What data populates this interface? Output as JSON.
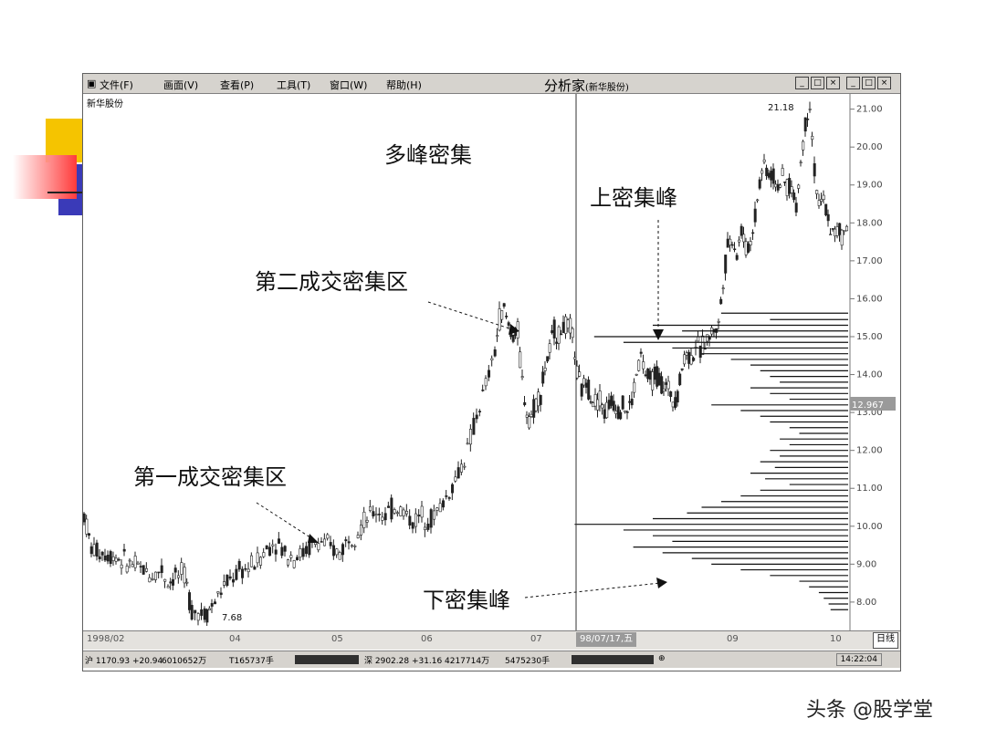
{
  "window": {
    "menu": [
      "文件(F)",
      "画面(V)",
      "查看(P)",
      "工具(T)",
      "窗口(W)",
      "帮助(H)"
    ],
    "title": "分析家",
    "title_sub": "(新华股份)",
    "stock_name": "新华股份",
    "buttons": {
      "minimize": "_",
      "restore": "□",
      "close": "×"
    }
  },
  "annotations": {
    "multi_peak": "多峰密集",
    "upper_peak": "上密集峰",
    "second_zone": "第二成交密集区",
    "first_zone": "第一成交密集区",
    "lower_peak": "下密集峰",
    "high_label": "21.18",
    "low_label": "7.68",
    "current_price": "12.967"
  },
  "time_axis": {
    "ticks": [
      "1998/02",
      "04",
      "05",
      "06",
      "07",
      "09",
      "10"
    ],
    "selected_date": "98/07/17,五",
    "period": "日线"
  },
  "status_bar": {
    "sh_index": "沪 1170.93 +20.94",
    "sh_amount": "6010652万",
    "sh_volume": "T165737手",
    "sz_index": "深 2902.28 +31.16",
    "sz_amount": "4217714万",
    "sz_volume": "5475230手",
    "time": "14:22:04"
  },
  "watermark": "头条 @股学堂",
  "chart_data": {
    "type": "candlestick",
    "y_axis": {
      "ticks": [
        "21.00",
        "20.00",
        "19.00",
        "18.00",
        "17.00",
        "16.00",
        "15.00",
        "14.00",
        "13.00",
        "12.00",
        "11.00",
        "10.00",
        "9.00",
        "8.00"
      ],
      "ylim": [
        7.3,
        21.4
      ]
    },
    "price_path": [
      [
        0,
        10.3
      ],
      [
        8,
        9.4
      ],
      [
        20,
        9.3
      ],
      [
        35,
        9.2
      ],
      [
        50,
        9.0
      ],
      [
        65,
        8.85
      ],
      [
        75,
        8.7
      ],
      [
        85,
        8.85
      ],
      [
        92,
        8.5
      ],
      [
        100,
        8.7
      ],
      [
        110,
        8.7
      ],
      [
        118,
        7.8
      ],
      [
        125,
        7.75
      ],
      [
        132,
        7.68
      ],
      [
        140,
        7.9
      ],
      [
        150,
        8.3
      ],
      [
        160,
        8.6
      ],
      [
        170,
        8.8
      ],
      [
        180,
        8.9
      ],
      [
        190,
        9.1
      ],
      [
        200,
        9.4
      ],
      [
        210,
        9.6
      ],
      [
        220,
        9.3
      ],
      [
        230,
        9.2
      ],
      [
        240,
        9.3
      ],
      [
        250,
        9.5
      ],
      [
        260,
        9.6
      ],
      [
        270,
        9.4
      ],
      [
        280,
        9.3
      ],
      [
        290,
        9.7
      ],
      [
        300,
        9.9
      ],
      [
        310,
        10.2
      ],
      [
        320,
        10.4
      ],
      [
        330,
        10.3
      ],
      [
        340,
        10.5
      ],
      [
        350,
        10.4
      ],
      [
        360,
        10.1
      ],
      [
        370,
        10.3
      ],
      [
        380,
        10.2
      ],
      [
        390,
        10.5
      ],
      [
        400,
        10.9
      ],
      [
        410,
        11.4
      ],
      [
        420,
        12.0
      ],
      [
        430,
        12.9
      ],
      [
        440,
        13.7
      ],
      [
        450,
        14.6
      ],
      [
        455,
        15.5
      ],
      [
        460,
        15.7
      ],
      [
        465,
        15.3
      ],
      [
        470,
        15.0
      ],
      [
        475,
        15.1
      ],
      [
        480,
        13.8
      ],
      [
        485,
        13.0
      ],
      [
        490,
        12.9
      ],
      [
        495,
        13.3
      ],
      [
        500,
        13.5
      ],
      [
        505,
        14.2
      ],
      [
        510,
        14.6
      ],
      [
        515,
        15.2
      ],
      [
        520,
        15.0
      ],
      [
        525,
        15.3
      ],
      [
        530,
        15.2
      ],
      [
        535,
        15.1
      ],
      [
        540,
        14.0
      ],
      [
        545,
        13.6
      ],
      [
        550,
        13.8
      ],
      [
        555,
        13.5
      ],
      [
        560,
        13.3
      ],
      [
        565,
        13.4
      ],
      [
        570,
        13.0
      ],
      [
        575,
        13.2
      ],
      [
        580,
        13.3
      ],
      [
        585,
        13.1
      ],
      [
        590,
        13.2
      ],
      [
        595,
        13.0
      ],
      [
        600,
        13.3
      ],
      [
        605,
        14.0
      ],
      [
        610,
        14.5
      ],
      [
        615,
        14.0
      ],
      [
        620,
        13.8
      ],
      [
        625,
        14.0
      ],
      [
        630,
        13.9
      ],
      [
        635,
        13.7
      ],
      [
        640,
        13.6
      ],
      [
        645,
        13.4
      ],
      [
        650,
        13.5
      ],
      [
        655,
        14.2
      ],
      [
        660,
        14.6
      ],
      [
        665,
        14.4
      ],
      [
        670,
        14.8
      ],
      [
        675,
        14.6
      ],
      [
        680,
        14.9
      ],
      [
        685,
        15.0
      ],
      [
        690,
        15.2
      ],
      [
        695,
        15.3
      ],
      [
        700,
        16.5
      ],
      [
        705,
        17.4
      ],
      [
        710,
        17.6
      ],
      [
        715,
        17.2
      ],
      [
        720,
        17.8
      ],
      [
        725,
        17.3
      ],
      [
        730,
        17.5
      ],
      [
        735,
        18.2
      ],
      [
        740,
        19.1
      ],
      [
        745,
        19.6
      ],
      [
        750,
        19.3
      ],
      [
        755,
        19.2
      ],
      [
        760,
        19.0
      ],
      [
        765,
        19.1
      ],
      [
        770,
        19.0
      ],
      [
        775,
        18.9
      ],
      [
        780,
        18.4
      ],
      [
        785,
        19.6
      ],
      [
        790,
        20.6
      ],
      [
        795,
        21.18
      ],
      [
        800,
        19.4
      ],
      [
        805,
        18.4
      ],
      [
        810,
        18.6
      ],
      [
        815,
        18.1
      ],
      [
        820,
        17.7
      ],
      [
        825,
        17.8
      ],
      [
        830,
        17.6
      ],
      [
        838,
        18.1
      ]
    ],
    "volume_profile": [
      {
        "price": 15.62,
        "length": 130
      },
      {
        "price": 15.45,
        "length": 80
      },
      {
        "price": 15.3,
        "length": 200
      },
      {
        "price": 15.15,
        "length": 170
      },
      {
        "price": 15.0,
        "length": 260
      },
      {
        "price": 14.85,
        "length": 230
      },
      {
        "price": 14.7,
        "length": 180
      },
      {
        "price": 14.55,
        "length": 150
      },
      {
        "price": 14.4,
        "length": 120
      },
      {
        "price": 14.25,
        "length": 100
      },
      {
        "price": 14.1,
        "length": 90
      },
      {
        "price": 13.95,
        "length": 80
      },
      {
        "price": 13.8,
        "length": 70
      },
      {
        "price": 13.65,
        "length": 100
      },
      {
        "price": 13.5,
        "length": 80
      },
      {
        "price": 13.35,
        "length": 60
      },
      {
        "price": 13.2,
        "length": 140
      },
      {
        "price": 13.05,
        "length": 110
      },
      {
        "price": 12.9,
        "length": 90
      },
      {
        "price": 12.75,
        "length": 80
      },
      {
        "price": 12.6,
        "length": 60
      },
      {
        "price": 12.45,
        "length": 50
      },
      {
        "price": 12.3,
        "length": 70
      },
      {
        "price": 12.15,
        "length": 60
      },
      {
        "price": 12.0,
        "length": 80
      },
      {
        "price": 11.85,
        "length": 70
      },
      {
        "price": 11.7,
        "length": 90
      },
      {
        "price": 11.55,
        "length": 75
      },
      {
        "price": 11.4,
        "length": 100
      },
      {
        "price": 11.25,
        "length": 85
      },
      {
        "price": 11.1,
        "length": 60
      },
      {
        "price": 10.95,
        "length": 90
      },
      {
        "price": 10.8,
        "length": 110
      },
      {
        "price": 10.65,
        "length": 130
      },
      {
        "price": 10.5,
        "length": 150
      },
      {
        "price": 10.35,
        "length": 165
      },
      {
        "price": 10.2,
        "length": 200
      },
      {
        "price": 10.05,
        "length": 280
      },
      {
        "price": 9.9,
        "length": 230
      },
      {
        "price": 9.75,
        "length": 200
      },
      {
        "price": 9.6,
        "length": 180
      },
      {
        "price": 9.45,
        "length": 220
      },
      {
        "price": 9.3,
        "length": 190
      },
      {
        "price": 9.15,
        "length": 160
      },
      {
        "price": 9.0,
        "length": 140
      },
      {
        "price": 8.85,
        "length": 110
      },
      {
        "price": 8.7,
        "length": 80
      },
      {
        "price": 8.55,
        "length": 50
      },
      {
        "price": 8.4,
        "length": 40
      },
      {
        "price": 8.25,
        "length": 30
      },
      {
        "price": 8.1,
        "length": 25
      },
      {
        "price": 7.95,
        "length": 20
      },
      {
        "price": 7.8,
        "length": 18
      }
    ]
  }
}
